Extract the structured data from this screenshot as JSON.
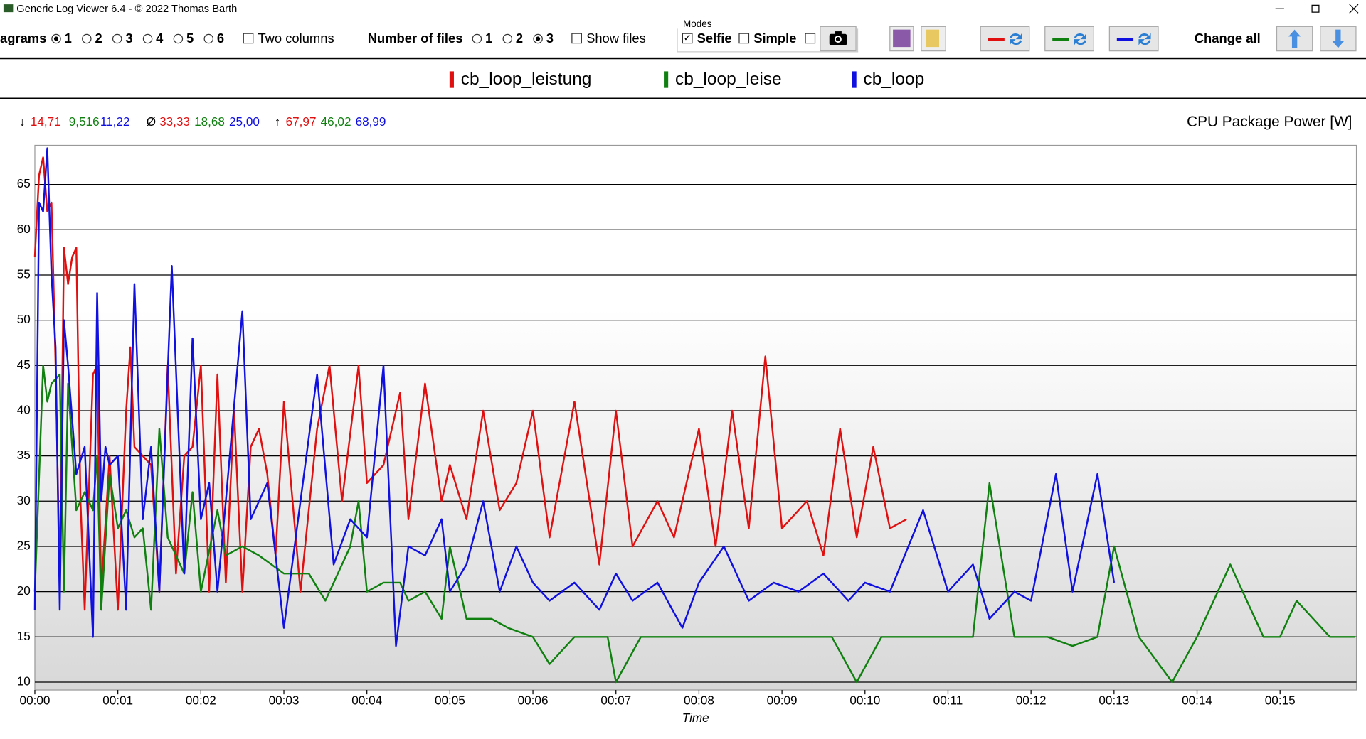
{
  "window_title": "Generic Log Viewer 6.4 - © 2022 Thomas Barth",
  "toolbar": {
    "diagrams": {
      "label": "agrams",
      "options": [
        "1",
        "2",
        "3",
        "4",
        "5",
        "6"
      ],
      "selected": 0
    },
    "two_columns": {
      "label": "Two columns",
      "checked": false
    },
    "files": {
      "label": "Number of files",
      "options": [
        "1",
        "2",
        "3"
      ],
      "selected": 2
    },
    "show_files": {
      "label": "Show files",
      "checked": false
    },
    "modes": {
      "label": "Modes",
      "selfie": {
        "label": "Selfie",
        "checked": true
      },
      "simple": {
        "label": "Simple",
        "checked": false
      },
      "extra": {
        "checked": false
      }
    },
    "change_all": "Change all"
  },
  "stats": [
    {
      "symbol": "↓",
      "values": [
        "14,71",
        "9,516",
        "11,22"
      ]
    },
    {
      "symbol": "Ø",
      "values": [
        "33,33",
        "18,68",
        "25,00"
      ]
    },
    {
      "symbol": "↑",
      "values": [
        "67,97",
        "46,02",
        "68,99"
      ]
    }
  ],
  "chart_data": {
    "type": "line",
    "y_label": "CPU Package Power [W]",
    "x_label": "Time",
    "xlim": [
      0,
      15.92
    ],
    "xticks": [
      {
        "value": 0,
        "label": "00:00"
      },
      {
        "value": 1,
        "label": "00:01"
      },
      {
        "value": 2,
        "label": "00:02"
      },
      {
        "value": 3,
        "label": "00:03"
      },
      {
        "value": 4,
        "label": "00:04"
      },
      {
        "value": 5,
        "label": "00:05"
      },
      {
        "value": 6,
        "label": "00:06"
      },
      {
        "value": 7,
        "label": "00:07"
      },
      {
        "value": 8,
        "label": "00:08"
      },
      {
        "value": 9,
        "label": "00:09"
      },
      {
        "value": 10,
        "label": "00:10"
      },
      {
        "value": 11,
        "label": "00:11"
      },
      {
        "value": 12,
        "label": "00:12"
      },
      {
        "value": 13,
        "label": "00:13"
      },
      {
        "value": 14,
        "label": "00:14"
      },
      {
        "value": 15,
        "label": "00:15"
      }
    ],
    "ylim": [
      9.13,
      69.33
    ],
    "yticks": [
      10,
      15,
      20,
      25,
      30,
      35,
      40,
      45,
      50,
      55,
      60,
      65
    ],
    "grid": true,
    "series": [
      {
        "name": "cb_loop_leistung",
        "color": "#e01010",
        "x": [
          0,
          0.05,
          0.1,
          0.15,
          0.2,
          0.25,
          0.3,
          0.35,
          0.4,
          0.45,
          0.5,
          0.55,
          0.6,
          0.7,
          0.75,
          0.8,
          0.9,
          1.0,
          1.1,
          1.15,
          1.2,
          1.3,
          1.4,
          1.5,
          1.6,
          1.7,
          1.8,
          1.9,
          2.0,
          2.1,
          2.2,
          2.3,
          2.4,
          2.5,
          2.6,
          2.7,
          2.8,
          2.9,
          3.0,
          3.2,
          3.4,
          3.55,
          3.7,
          3.9,
          4.0,
          4.2,
          4.4,
          4.5,
          4.7,
          4.9,
          5.0,
          5.2,
          5.4,
          5.6,
          5.8,
          6.0,
          6.2,
          6.5,
          6.8,
          7.0,
          7.2,
          7.5,
          7.7,
          8.0,
          8.2,
          8.4,
          8.6,
          8.8,
          9.0,
          9.3,
          9.5,
          9.7,
          9.9,
          10.1,
          10.3,
          10.5
        ],
        "values": [
          57,
          66,
          68,
          62,
          63,
          45,
          21,
          58,
          54,
          57,
          58,
          30,
          18,
          44,
          45,
          20,
          35,
          18,
          40,
          47,
          36,
          35,
          34,
          20,
          45,
          22,
          35,
          36,
          45,
          20,
          44,
          21,
          40,
          20,
          36,
          38,
          33,
          24,
          41,
          20,
          38,
          45,
          30,
          45,
          32,
          34,
          42,
          28,
          43,
          30,
          34,
          28,
          40,
          29,
          32,
          40,
          26,
          41,
          23,
          40,
          25,
          30,
          26,
          38,
          25,
          40,
          27,
          46,
          27,
          30,
          24,
          38,
          26,
          36,
          27,
          28
        ]
      },
      {
        "name": "cb_loop_leise",
        "color": "#108010",
        "x": [
          0,
          0.1,
          0.15,
          0.2,
          0.3,
          0.35,
          0.4,
          0.5,
          0.6,
          0.7,
          0.75,
          0.8,
          0.9,
          1.0,
          1.1,
          1.2,
          1.3,
          1.4,
          1.5,
          1.6,
          1.8,
          1.9,
          2.0,
          2.2,
          2.3,
          2.5,
          2.7,
          3.0,
          3.3,
          3.5,
          3.8,
          3.9,
          4.0,
          4.2,
          4.4,
          4.5,
          4.7,
          4.9,
          5.0,
          5.2,
          5.5,
          5.7,
          6.0,
          6.2,
          6.5,
          6.9,
          7.0,
          7.3,
          7.7,
          8.0,
          8.4,
          8.8,
          9.2,
          9.6,
          9.9,
          10.2,
          10.6,
          11.0,
          11.3,
          11.5,
          11.8,
          12.2,
          12.5,
          12.8,
          13.0,
          13.3,
          13.7,
          14.0,
          14.4,
          14.8,
          15.0,
          15.2,
          15.6,
          15.9
        ],
        "values": [
          20,
          45,
          41,
          43,
          44,
          20,
          43,
          29,
          31,
          29,
          35,
          18,
          33,
          27,
          29,
          26,
          27,
          18,
          38,
          26,
          22,
          31,
          20,
          29,
          24,
          25,
          24,
          22,
          22,
          19,
          25,
          30,
          20,
          21,
          21,
          19,
          20,
          17,
          25,
          17,
          17,
          16,
          15,
          12,
          15,
          15,
          10,
          15,
          15,
          15,
          15,
          15,
          15,
          15,
          10,
          15,
          15,
          15,
          15,
          32,
          15,
          15,
          14,
          15,
          25,
          15,
          10,
          15,
          23,
          15,
          15,
          19,
          15,
          15
        ]
      },
      {
        "name": "cb_loop",
        "color": "#1010e0",
        "x": [
          0,
          0.05,
          0.1,
          0.15,
          0.2,
          0.25,
          0.3,
          0.35,
          0.4,
          0.5,
          0.6,
          0.7,
          0.75,
          0.8,
          0.85,
          0.9,
          1.0,
          1.1,
          1.2,
          1.3,
          1.4,
          1.5,
          1.65,
          1.8,
          1.9,
          2.0,
          2.1,
          2.2,
          2.3,
          2.5,
          2.6,
          2.8,
          3.0,
          3.2,
          3.4,
          3.6,
          3.8,
          4.0,
          4.2,
          4.35,
          4.5,
          4.7,
          4.9,
          5.0,
          5.2,
          5.4,
          5.6,
          5.8,
          6.0,
          6.2,
          6.5,
          6.8,
          7.0,
          7.2,
          7.5,
          7.8,
          8.0,
          8.3,
          8.6,
          8.9,
          9.2,
          9.5,
          9.8,
          10.0,
          10.3,
          10.7,
          11.0,
          11.3,
          11.5,
          11.8,
          12.0,
          12.3,
          12.5,
          12.8,
          13.0
        ],
        "values": [
          18,
          63,
          62,
          69,
          55,
          47,
          18,
          50,
          45,
          33,
          36,
          15,
          53,
          30,
          36,
          34,
          35,
          18,
          54,
          28,
          36,
          20,
          56,
          22,
          48,
          28,
          32,
          20,
          30,
          51,
          28,
          32,
          16,
          30,
          44,
          23,
          28,
          26,
          45,
          14,
          25,
          24,
          28,
          20,
          23,
          30,
          20,
          25,
          21,
          19,
          21,
          18,
          22,
          19,
          21,
          16,
          21,
          25,
          19,
          21,
          20,
          22,
          19,
          21,
          20,
          29,
          20,
          23,
          17,
          20,
          19,
          33,
          20,
          33,
          21
        ]
      }
    ]
  }
}
